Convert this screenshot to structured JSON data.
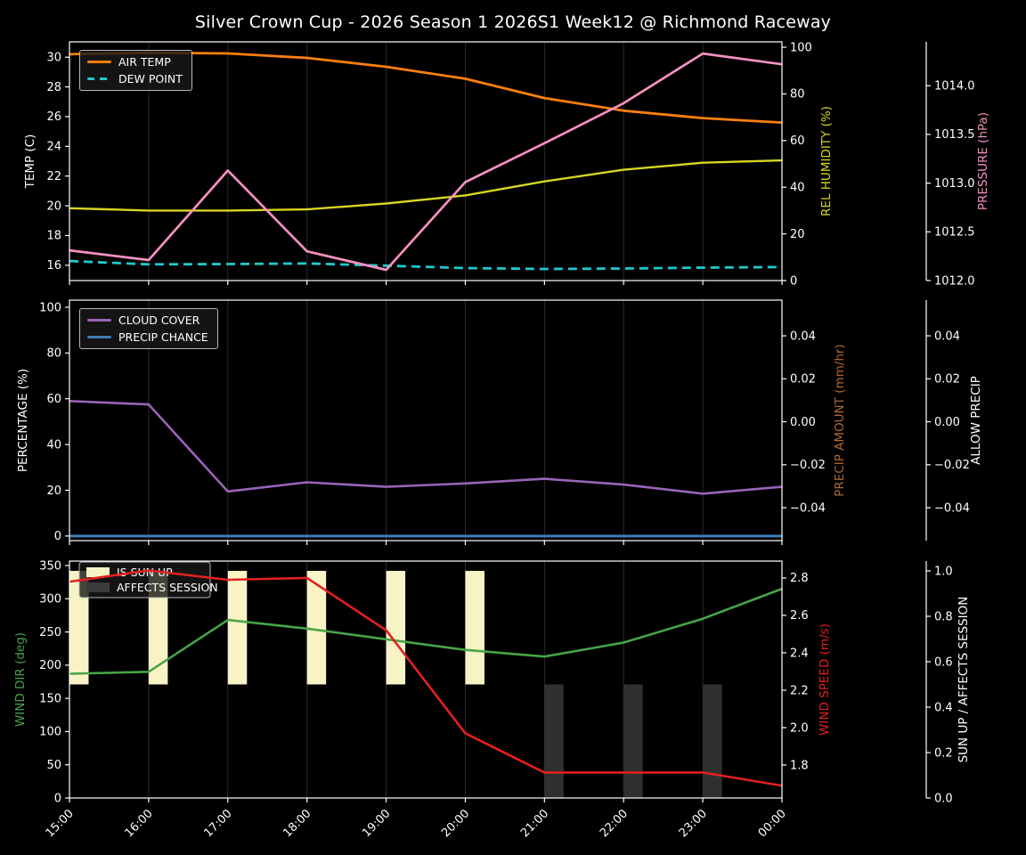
{
  "title": "Silver Crown Cup - 2026 Season 1 2026S1 Week12 @ Richmond Raceway",
  "colors": {
    "bg": "#000000",
    "text": "#ffffff",
    "grid": "#2b2b2b",
    "air_temp": "#ff7f0e",
    "dew_point": "#1fc9cc",
    "humidity": "#d6d622",
    "pressure": "#f490c0",
    "cloud": "#9a63b8",
    "precip_chance": "#3f7cb8",
    "precip_amount": "#b0682f",
    "allow_precip": "#ffffff",
    "wind_dir": "#47a447",
    "wind_speed": "#e32020",
    "sun_up": "#f8f3c5",
    "affects": "#2f2f2f",
    "affects_legend": "#3a3a3a"
  },
  "x_labels": [
    "15:00",
    "16:00",
    "17:00",
    "18:00",
    "19:00",
    "20:00",
    "21:00",
    "22:00",
    "23:00",
    "00:00"
  ],
  "chart_data": [
    {
      "type": "line",
      "panel": "temperature-humidity-pressure",
      "axes": [
        {
          "id": "temp",
          "side": "left",
          "label": "TEMP (C)",
          "color": "text",
          "label_x": 38,
          "tick_values": [
            16,
            18,
            20,
            22,
            24,
            26,
            28,
            30
          ],
          "tick_labels": [
            "16",
            "18",
            "20",
            "22",
            "24",
            "26",
            "28",
            "30"
          ],
          "range": [
            14.97,
            31.03
          ]
        },
        {
          "id": "hum",
          "side": "right",
          "label": "REL HUMIDITY (%)",
          "color": "humidity",
          "label_x": 932,
          "tick_values": [
            0,
            20,
            40,
            60,
            80,
            100
          ],
          "tick_labels": [
            "0",
            "20",
            "40",
            "60",
            "80",
            "100"
          ],
          "range": [
            0,
            102.3
          ]
        },
        {
          "id": "press",
          "side": "right2",
          "label": "PRESSURE (hPa)",
          "color": "pressure",
          "label_x": 1108,
          "tick_values": [
            1012.0,
            1012.5,
            1013.0,
            1013.5,
            1014.0
          ],
          "tick_labels": [
            "1012.0",
            "1012.5",
            "1013.0",
            "1013.5",
            "1014.0"
          ],
          "range": [
            1012.0,
            1014.45
          ]
        }
      ],
      "series": [
        {
          "name": "air-temp",
          "label": "AIR TEMP",
          "axis": "temp",
          "color": "air_temp",
          "width": 2.8,
          "values": [
            30.2,
            30.3,
            30.25,
            29.95,
            29.35,
            28.55,
            27.25,
            26.4,
            25.9,
            25.6
          ]
        },
        {
          "name": "dew-point",
          "label": "DEW POINT",
          "axis": "temp",
          "color": "dew_point",
          "width": 2.8,
          "dash": true,
          "values": [
            16.28,
            16.06,
            16.08,
            16.12,
            15.97,
            15.81,
            15.75,
            15.78,
            15.84,
            15.88
          ]
        },
        {
          "name": "rel-humidity",
          "label": "REL HUMIDITY",
          "axis": "hum",
          "color": "humidity",
          "width": 2.4,
          "values": [
            31,
            30,
            30,
            30.5,
            33,
            36.5,
            42.5,
            47.5,
            50.5,
            51.5
          ]
        },
        {
          "name": "pressure",
          "label": "PRESSURE",
          "axis": "press",
          "color": "pressure",
          "width": 2.7,
          "values": [
            1012.31,
            1012.21,
            1013.13,
            1012.3,
            1012.11,
            1013.01,
            1013.41,
            1013.82,
            1014.33,
            1014.22
          ]
        }
      ]
    },
    {
      "type": "line",
      "panel": "cloud-precip",
      "axes": [
        {
          "id": "pct",
          "side": "left",
          "label": "PERCENTAGE (%)",
          "color": "text",
          "label_x": 30,
          "tick_values": [
            0,
            20,
            40,
            60,
            80,
            100
          ],
          "tick_labels": [
            "0",
            "20",
            "40",
            "60",
            "80",
            "100"
          ],
          "range": [
            -2,
            103.1
          ]
        },
        {
          "id": "pamt",
          "side": "right",
          "label": "PRECIP AMOUNT (mm/hr)",
          "color": "precip_amount",
          "label_x": 947,
          "tick_values": [
            -0.04,
            -0.02,
            0,
            0.02,
            0.04
          ],
          "tick_labels": [
            "−0.04",
            "−0.02",
            "0.00",
            "0.02",
            "0.04"
          ],
          "range": [
            -0.0553,
            0.0566
          ]
        },
        {
          "id": "allow",
          "side": "right2",
          "label": "ALLOW PRECIP",
          "color": "allow_precip",
          "label_x": 1100,
          "tick_values": [
            -0.04,
            -0.02,
            0,
            0.02,
            0.04
          ],
          "tick_labels": [
            "−0.04",
            "−0.02",
            "0.00",
            "0.02",
            "0.04"
          ],
          "range": [
            -0.0553,
            0.0566
          ]
        }
      ],
      "series": [
        {
          "name": "cloud-cover",
          "label": "CLOUD COVER",
          "axis": "pct",
          "color": "cloud",
          "width": 2.6,
          "values": [
            59,
            57.5,
            19.5,
            23.5,
            21.5,
            23,
            25,
            22.5,
            18.5,
            21.5
          ]
        },
        {
          "name": "precip-chance",
          "label": "PRECIP CHANCE",
          "axis": "pct",
          "color": "precip_chance",
          "width": 3,
          "values": [
            0,
            0,
            0,
            0,
            0,
            0,
            0,
            0,
            0,
            0
          ]
        }
      ]
    },
    {
      "type": "line-bar",
      "panel": "wind-sun",
      "axes": [
        {
          "id": "wdir",
          "side": "left",
          "label": "WIND DIR (deg)",
          "color": "wind_dir",
          "label_x": 27,
          "tick_values": [
            0,
            50,
            100,
            150,
            200,
            250,
            300,
            350
          ],
          "tick_labels": [
            "0",
            "50",
            "100",
            "150",
            "200",
            "250",
            "300",
            "350"
          ],
          "range": [
            0,
            356.7
          ]
        },
        {
          "id": "wspd",
          "side": "right",
          "label": "WIND SPEED (m/s)",
          "color": "wind_speed",
          "label_x": 930,
          "tick_values": [
            1.8,
            2.0,
            2.2,
            2.4,
            2.6,
            2.8
          ],
          "tick_labels": [
            "1.8",
            "2.0",
            "2.2",
            "2.4",
            "2.6",
            "2.8"
          ],
          "range": [
            1.624,
            2.89
          ]
        },
        {
          "id": "sun",
          "side": "right2",
          "label": "SUN UP / AFFECTS SESSION",
          "color": "text",
          "label_x": 1086,
          "tick_values": [
            0,
            0.2,
            0.4,
            0.6,
            0.8,
            1.0
          ],
          "tick_labels": [
            "0.0",
            "0.2",
            "0.4",
            "0.6",
            "0.8",
            "1.0"
          ],
          "range": [
            0,
            1.043
          ]
        }
      ],
      "bars": [
        {
          "name": "is-sun-up",
          "label": "IS SUN UP",
          "axis": "sun",
          "color": "sun_up",
          "hours": [
            0,
            1,
            2,
            3,
            4,
            5
          ],
          "values_by_hour": [
            1,
            1,
            1,
            1,
            1,
            1,
            0,
            0,
            0,
            0
          ],
          "from": 0.5,
          "to": 1.0
        },
        {
          "name": "affects-session",
          "label": "AFFECTS SESSION",
          "axis": "sun",
          "color": "affects",
          "hours": [
            6,
            7,
            8
          ],
          "values_by_hour": [
            0,
            0,
            0,
            0,
            0,
            0,
            1,
            1,
            1,
            0
          ],
          "from": 0.0,
          "to": 0.5
        }
      ],
      "legend_in_plot": true,
      "series": [
        {
          "name": "wind-dir",
          "label": "WIND DIR",
          "axis": "wdir",
          "color": "wind_dir",
          "width": 2.6,
          "values": [
            187,
            190,
            268,
            255,
            239,
            223,
            213,
            234,
            270,
            315
          ]
        },
        {
          "name": "wind-speed",
          "label": "WIND SPEED",
          "axis": "wspd",
          "color": "wind_speed",
          "width": 2.6,
          "values": [
            2.78,
            2.84,
            2.79,
            2.8,
            2.52,
            1.97,
            1.76,
            1.76,
            1.76,
            1.69
          ]
        }
      ]
    }
  ]
}
